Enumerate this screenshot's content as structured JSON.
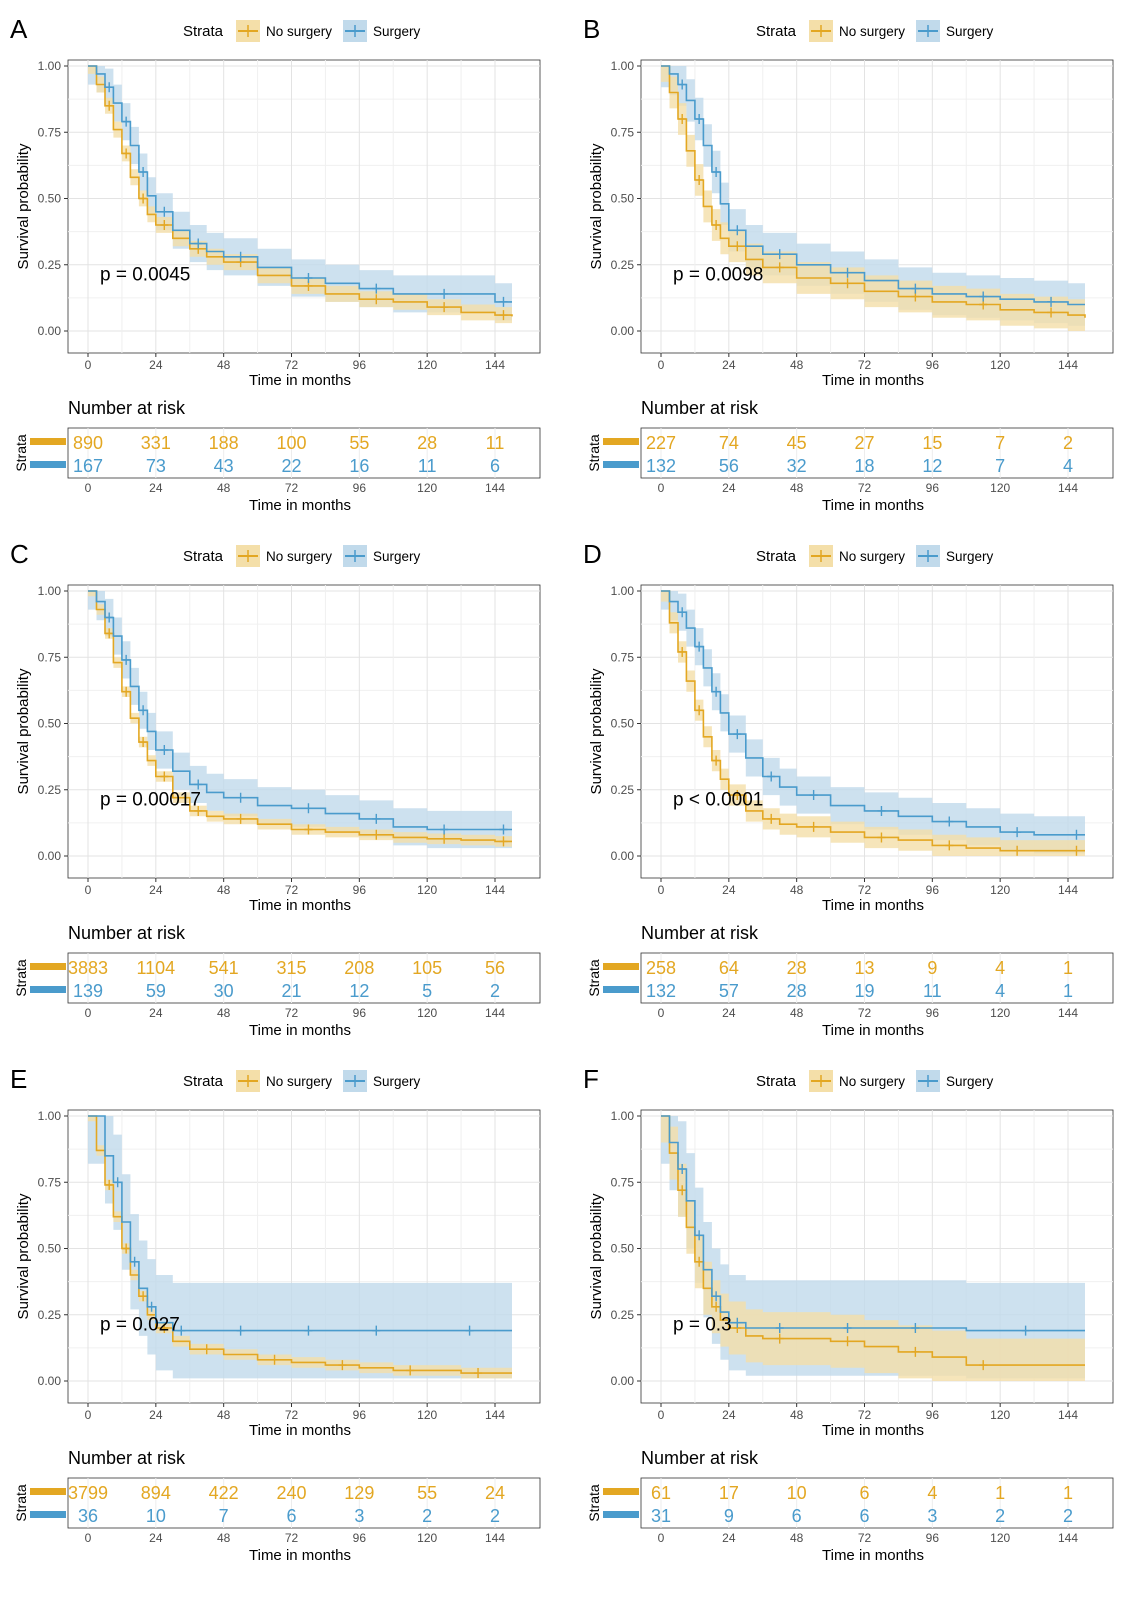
{
  "colors": {
    "no_surgery": "#E3A722",
    "no_surgery_band": "#F4DFA9",
    "surgery": "#4A9BCC",
    "surgery_band": "#C1DAEB",
    "grid": "#E3E3E3",
    "axis_text": "#4D4D4D",
    "text": "#000000"
  },
  "common": {
    "legend_title": "Strata",
    "legend_labels": [
      "No surgery",
      "Surgery"
    ],
    "xlabel": "Time in months",
    "ylabel": "Survival probability",
    "risk_title": "Number at risk",
    "risk_ylabel": "Strata"
  },
  "chart_data": [
    {
      "panel": "A",
      "type": "line",
      "step": true,
      "xlim": [
        0,
        150
      ],
      "ylim": [
        0,
        1
      ],
      "x_ticks": [
        "0",
        "24",
        "48",
        "72",
        "96",
        "120",
        "144"
      ],
      "y_ticks": [
        "0.00",
        "0.25",
        "0.50",
        "0.75",
        "1.00"
      ],
      "p_value": "p = 0.0045",
      "series": [
        {
          "name": "No surgery",
          "x": [
            0,
            3,
            6,
            9,
            12,
            15,
            18,
            21,
            24,
            30,
            36,
            42,
            48,
            60,
            72,
            84,
            96,
            108,
            120,
            132,
            144,
            150
          ],
          "y": [
            1.0,
            0.93,
            0.85,
            0.76,
            0.67,
            0.58,
            0.5,
            0.44,
            0.4,
            0.35,
            0.31,
            0.28,
            0.26,
            0.21,
            0.17,
            0.14,
            0.12,
            0.11,
            0.09,
            0.07,
            0.06,
            0.055
          ],
          "band": 0.03
        },
        {
          "name": "Surgery",
          "x": [
            0,
            3,
            6,
            9,
            12,
            15,
            18,
            21,
            24,
            30,
            36,
            42,
            48,
            60,
            72,
            84,
            96,
            108,
            120,
            132,
            144,
            150
          ],
          "y": [
            1.0,
            0.97,
            0.92,
            0.86,
            0.79,
            0.7,
            0.6,
            0.51,
            0.45,
            0.38,
            0.33,
            0.3,
            0.28,
            0.24,
            0.2,
            0.18,
            0.16,
            0.14,
            0.14,
            0.14,
            0.11,
            0.11
          ],
          "band": 0.07
        }
      ],
      "risk": {
        "no_surgery": [
          "890",
          "331",
          "188",
          "100",
          "55",
          "28",
          "11"
        ],
        "surgery": [
          "167",
          "73",
          "43",
          "22",
          "16",
          "11",
          "6"
        ]
      }
    },
    {
      "panel": "B",
      "type": "line",
      "step": true,
      "xlim": [
        0,
        150
      ],
      "ylim": [
        0,
        1
      ],
      "x_ticks": [
        "0",
        "24",
        "48",
        "72",
        "96",
        "120",
        "144"
      ],
      "y_ticks": [
        "0.00",
        "0.25",
        "0.50",
        "0.75",
        "1.00"
      ],
      "p_value": "p = 0.0098",
      "series": [
        {
          "name": "No surgery",
          "x": [
            0,
            3,
            6,
            9,
            12,
            15,
            18,
            21,
            24,
            30,
            36,
            48,
            60,
            72,
            84,
            96,
            108,
            120,
            132,
            144,
            150
          ],
          "y": [
            1.0,
            0.9,
            0.8,
            0.68,
            0.57,
            0.47,
            0.4,
            0.35,
            0.32,
            0.27,
            0.24,
            0.2,
            0.18,
            0.15,
            0.13,
            0.11,
            0.1,
            0.08,
            0.07,
            0.06,
            0.05
          ],
          "band": 0.06
        },
        {
          "name": "Surgery",
          "x": [
            0,
            3,
            6,
            9,
            12,
            15,
            18,
            21,
            24,
            30,
            36,
            48,
            60,
            72,
            84,
            96,
            108,
            120,
            132,
            144,
            150
          ],
          "y": [
            1.0,
            0.97,
            0.93,
            0.87,
            0.8,
            0.7,
            0.6,
            0.48,
            0.38,
            0.32,
            0.29,
            0.25,
            0.22,
            0.19,
            0.16,
            0.14,
            0.13,
            0.12,
            0.11,
            0.1,
            0.1
          ],
          "band": 0.08
        }
      ],
      "risk": {
        "no_surgery": [
          "227",
          "74",
          "45",
          "27",
          "15",
          "7",
          "2"
        ],
        "surgery": [
          "132",
          "56",
          "32",
          "18",
          "12",
          "7",
          "4"
        ]
      }
    },
    {
      "panel": "C",
      "type": "line",
      "step": true,
      "xlim": [
        0,
        150
      ],
      "ylim": [
        0,
        1
      ],
      "x_ticks": [
        "0",
        "24",
        "48",
        "72",
        "96",
        "120",
        "144"
      ],
      "y_ticks": [
        "0.00",
        "0.25",
        "0.50",
        "0.75",
        "1.00"
      ],
      "p_value": "p = 0.00017",
      "series": [
        {
          "name": "No surgery",
          "x": [
            0,
            3,
            6,
            9,
            12,
            15,
            18,
            21,
            24,
            30,
            36,
            42,
            48,
            60,
            72,
            84,
            96,
            108,
            120,
            132,
            144,
            150
          ],
          "y": [
            1.0,
            0.93,
            0.84,
            0.73,
            0.62,
            0.52,
            0.43,
            0.36,
            0.3,
            0.22,
            0.17,
            0.15,
            0.14,
            0.12,
            0.1,
            0.09,
            0.08,
            0.07,
            0.065,
            0.06,
            0.055,
            0.055
          ],
          "band": 0.02
        },
        {
          "name": "Surgery",
          "x": [
            0,
            3,
            6,
            9,
            12,
            15,
            18,
            21,
            24,
            30,
            36,
            42,
            48,
            60,
            72,
            84,
            96,
            108,
            120,
            132,
            144,
            150
          ],
          "y": [
            1.0,
            0.96,
            0.9,
            0.83,
            0.74,
            0.64,
            0.55,
            0.47,
            0.4,
            0.32,
            0.27,
            0.24,
            0.22,
            0.19,
            0.18,
            0.16,
            0.14,
            0.11,
            0.1,
            0.1,
            0.1,
            0.1
          ],
          "band": 0.07
        }
      ],
      "risk": {
        "no_surgery": [
          "3883",
          "1104",
          "541",
          "315",
          "208",
          "105",
          "56"
        ],
        "surgery": [
          "139",
          "59",
          "30",
          "21",
          "12",
          "5",
          "2"
        ]
      }
    },
    {
      "panel": "D",
      "type": "line",
      "step": true,
      "xlim": [
        0,
        150
      ],
      "ylim": [
        0,
        1
      ],
      "x_ticks": [
        "0",
        "24",
        "48",
        "72",
        "96",
        "120",
        "144"
      ],
      "y_ticks": [
        "0.00",
        "0.25",
        "0.50",
        "0.75",
        "1.00"
      ],
      "p_value": "p < 0.0001",
      "series": [
        {
          "name": "No surgery",
          "x": [
            0,
            3,
            6,
            9,
            12,
            15,
            18,
            21,
            24,
            30,
            36,
            42,
            48,
            60,
            72,
            84,
            96,
            108,
            120,
            132,
            144,
            150
          ],
          "y": [
            1.0,
            0.88,
            0.77,
            0.66,
            0.55,
            0.45,
            0.36,
            0.29,
            0.23,
            0.17,
            0.14,
            0.12,
            0.11,
            0.09,
            0.07,
            0.06,
            0.04,
            0.03,
            0.02,
            0.02,
            0.02,
            0.02
          ],
          "band": 0.04
        },
        {
          "name": "Surgery",
          "x": [
            0,
            3,
            6,
            9,
            12,
            15,
            18,
            21,
            24,
            30,
            36,
            42,
            48,
            60,
            72,
            84,
            96,
            108,
            120,
            132,
            144,
            150
          ],
          "y": [
            1.0,
            0.96,
            0.92,
            0.86,
            0.79,
            0.71,
            0.62,
            0.54,
            0.46,
            0.37,
            0.3,
            0.26,
            0.23,
            0.19,
            0.17,
            0.15,
            0.13,
            0.11,
            0.09,
            0.08,
            0.08,
            0.08
          ],
          "band": 0.07
        }
      ],
      "risk": {
        "no_surgery": [
          "258",
          "64",
          "28",
          "13",
          "9",
          "4",
          "1"
        ],
        "surgery": [
          "132",
          "57",
          "28",
          "19",
          "11",
          "4",
          "1"
        ]
      }
    },
    {
      "panel": "E",
      "type": "line",
      "step": true,
      "xlim": [
        0,
        150
      ],
      "ylim": [
        0,
        1
      ],
      "x_ticks": [
        "0",
        "24",
        "48",
        "72",
        "96",
        "120",
        "144"
      ],
      "y_ticks": [
        "0.00",
        "0.25",
        "0.50",
        "0.75",
        "1.00"
      ],
      "p_value": "p = 0.027",
      "series": [
        {
          "name": "No surgery",
          "x": [
            0,
            3,
            6,
            9,
            12,
            15,
            18,
            21,
            24,
            30,
            36,
            48,
            60,
            72,
            84,
            96,
            108,
            120,
            132,
            144,
            150
          ],
          "y": [
            1.0,
            0.87,
            0.74,
            0.62,
            0.5,
            0.4,
            0.32,
            0.25,
            0.2,
            0.15,
            0.12,
            0.1,
            0.08,
            0.07,
            0.06,
            0.05,
            0.04,
            0.04,
            0.03,
            0.03,
            0.03
          ],
          "band": 0.02
        },
        {
          "name": "Surgery",
          "x": [
            0,
            6,
            9,
            12,
            15,
            18,
            21,
            24,
            30,
            36,
            48,
            60,
            72,
            84,
            96,
            108,
            120,
            150
          ],
          "y": [
            1.0,
            0.85,
            0.75,
            0.6,
            0.45,
            0.35,
            0.28,
            0.22,
            0.19,
            0.19,
            0.19,
            0.19,
            0.19,
            0.19,
            0.19,
            0.19,
            0.19,
            0.19
          ],
          "band": 0.18
        }
      ],
      "risk": {
        "no_surgery": [
          "3799",
          "894",
          "422",
          "240",
          "129",
          "55",
          "24"
        ],
        "surgery": [
          "36",
          "10",
          "7",
          "6",
          "3",
          "2",
          "2"
        ]
      }
    },
    {
      "panel": "F",
      "type": "line",
      "step": true,
      "xlim": [
        0,
        150
      ],
      "ylim": [
        0,
        1
      ],
      "x_ticks": [
        "0",
        "24",
        "48",
        "72",
        "96",
        "120",
        "144"
      ],
      "y_ticks": [
        "0.00",
        "0.25",
        "0.50",
        "0.75",
        "1.00"
      ],
      "p_value": "p = 0.3",
      "series": [
        {
          "name": "No surgery",
          "x": [
            0,
            3,
            6,
            9,
            12,
            15,
            18,
            21,
            24,
            30,
            36,
            48,
            60,
            72,
            84,
            96,
            108,
            120,
            150
          ],
          "y": [
            1.0,
            0.86,
            0.72,
            0.58,
            0.45,
            0.35,
            0.28,
            0.23,
            0.2,
            0.17,
            0.16,
            0.16,
            0.15,
            0.13,
            0.11,
            0.09,
            0.06,
            0.06,
            0.06
          ],
          "band": 0.1
        },
        {
          "name": "Surgery",
          "x": [
            0,
            3,
            6,
            9,
            12,
            15,
            18,
            21,
            24,
            30,
            36,
            48,
            60,
            72,
            84,
            96,
            108,
            150
          ],
          "y": [
            1.0,
            0.9,
            0.8,
            0.68,
            0.55,
            0.42,
            0.32,
            0.26,
            0.22,
            0.2,
            0.2,
            0.2,
            0.2,
            0.2,
            0.2,
            0.2,
            0.19,
            0.19
          ],
          "band": 0.18
        }
      ],
      "risk": {
        "no_surgery": [
          "61",
          "17",
          "10",
          "6",
          "4",
          "1",
          "1"
        ],
        "surgery": [
          "31",
          "9",
          "6",
          "6",
          "3",
          "2",
          "2"
        ]
      }
    }
  ]
}
